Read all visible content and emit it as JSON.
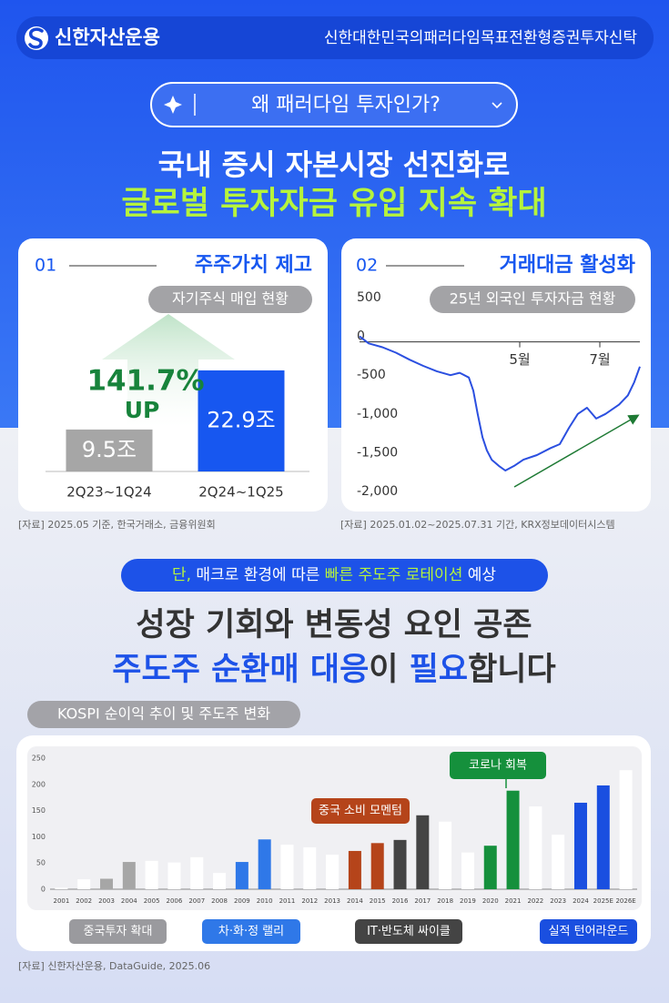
{
  "header": {
    "brand": "신한자산운용",
    "product": "신한대한민국의패러다임목표전환형증권투자신탁"
  },
  "question": "왜 패러다임 투자인가?",
  "headline": {
    "line1": "국내 증시 자본시장 선진화로",
    "line2": "글로벌 투자자금 유입 지속 확대"
  },
  "cards": [
    {
      "number": "01",
      "title": "주주가치 제고",
      "subtitle": "자기주식 매입 현황",
      "source": "[자료] 2025.05 기준, 한국거래소, 금융위원회"
    },
    {
      "number": "02",
      "title": "거래대금 활성화",
      "subtitle": "25년 외국인 투자자금 현황",
      "source": "[자료] 2025.01.02~2025.07.31 기간, KRX정보데이터시스템"
    }
  ],
  "notice": {
    "prefix": "단,",
    "text1": " 매크로 환경에 따른 ",
    "highlight": "빠른 주도주 로테이션",
    "text2": " 예상"
  },
  "headline2": {
    "line1": "성장 기회와 변동성 요인 공존",
    "part1": "주도주 순환매 대응",
    "part2": "이 ",
    "part3": "필요",
    "part4": "합니다"
  },
  "kospi": {
    "label": "KOSPI 순이익 추이 및 주도주 변화",
    "source": "[자료] 신한자산운용, DataGuide, 2025.06"
  },
  "chart_data": [
    {
      "type": "bar",
      "categories": [
        "2Q23~1Q24",
        "2Q24~1Q25"
      ],
      "values": [
        9.5,
        22.9
      ],
      "value_labels": [
        "9.5조",
        "22.9조"
      ],
      "colors": [
        "#a6a6a6",
        "#1757f0"
      ],
      "annotation": {
        "text": "141.7%",
        "sub": "UP",
        "color": "#17833b"
      }
    },
    {
      "type": "line",
      "x": [
        1.0,
        1.23,
        1.57,
        1.91,
        2.25,
        2.59,
        2.93,
        3.27,
        3.5,
        3.73,
        3.84,
        3.95,
        4.07,
        4.18,
        4.3,
        4.48,
        4.64,
        4.86,
        5.09,
        5.43,
        5.77,
        6.0,
        6.23,
        6.45,
        6.68,
        6.91,
        7.14,
        7.48,
        7.7,
        7.86,
        8.0
      ],
      "series": [
        {
          "color": "#2b4fe0",
          "values": [
            0,
            -90,
            -140,
            -210,
            -300,
            -380,
            -450,
            -500,
            -470,
            -530,
            -700,
            -1000,
            -1300,
            -1470,
            -1590,
            -1670,
            -1730,
            -1670,
            -1590,
            -1530,
            -1440,
            -1390,
            -1180,
            -1000,
            -920,
            -1060,
            -1000,
            -880,
            -760,
            -590,
            -390
          ]
        }
      ],
      "xlim": [
        1,
        8
      ],
      "xticks": [
        {
          "value": 5,
          "label": "5월"
        },
        {
          "value": 7,
          "label": "7월"
        }
      ],
      "ylim": [
        -2000,
        500
      ],
      "yticks": [
        500,
        0,
        -500,
        {
          "value": -1000,
          "label": "-1,000"
        },
        {
          "value": -1500,
          "label": "-1,500"
        },
        {
          "value": -2000,
          "label": "-2,000"
        }
      ],
      "trend_color": "#1e7a34"
    },
    {
      "type": "bar",
      "categories": [
        "2001",
        "2002",
        "2003",
        "2004",
        "2005",
        "2006",
        "2007",
        "2008",
        "2009",
        "2010",
        "2011",
        "2012",
        "2013",
        "2014",
        "2015",
        "2016",
        "2017",
        "2018",
        "2019",
        "2020",
        "2021",
        "2022",
        "2023",
        "2024",
        "2025E",
        "2026E"
      ],
      "values": [
        3,
        19,
        20,
        52,
        54,
        51,
        61,
        31,
        52,
        95,
        85,
        80,
        66,
        73,
        88,
        94,
        141,
        129,
        70,
        83,
        188,
        158,
        104,
        165,
        198,
        227
      ],
      "colors": [
        "#ffffff",
        "#ffffff",
        "#a6a6a6",
        "#a6a6a6",
        "#ffffff",
        "#ffffff",
        "#ffffff",
        "#ffffff",
        "#2f78e8",
        "#2f78e8",
        "#ffffff",
        "#ffffff",
        "#ffffff",
        "#b5441a",
        "#b5441a",
        "#444444",
        "#444444",
        "#ffffff",
        "#ffffff",
        "#15903c",
        "#15903c",
        "#ffffff",
        "#ffffff",
        "#1a4fe0",
        "#1a4fe0",
        "#ffffff"
      ],
      "ylim": [
        0,
        250
      ],
      "yticks": [
        0,
        50,
        100,
        150,
        200,
        250
      ],
      "annotations": [
        {
          "text": "중국 소비 모멘텀",
          "color": "#b5441a"
        },
        {
          "text": "코로나 회복",
          "color": "#15903c"
        },
        {
          "text": "중국투자 확대",
          "color": "#9a9a9e"
        },
        {
          "text": "차·화·정 랠리",
          "color": "#2f78e8"
        },
        {
          "text": "IT·반도체 싸이클",
          "color": "#444444"
        },
        {
          "text": "실적 턴어라운드",
          "color": "#1a4fe0"
        }
      ]
    }
  ]
}
